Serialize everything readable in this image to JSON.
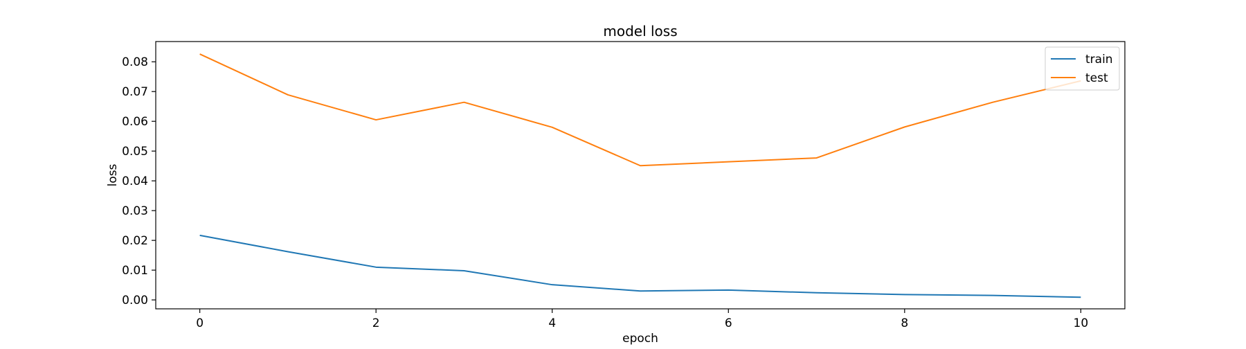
{
  "chart_data": {
    "type": "line",
    "title": "model loss",
    "xlabel": "epoch",
    "ylabel": "loss",
    "x": [
      0,
      1,
      2,
      3,
      4,
      5,
      6,
      7,
      8,
      9,
      10
    ],
    "series": [
      {
        "name": "train",
        "color": "#1f77b4",
        "values": [
          0.0217,
          0.0162,
          0.011,
          0.0098,
          0.0051,
          0.003,
          0.0033,
          0.0024,
          0.0018,
          0.0015,
          0.0009
        ]
      },
      {
        "name": "test",
        "color": "#ff7f0e",
        "values": [
          0.0826,
          0.0689,
          0.0605,
          0.0664,
          0.058,
          0.0451,
          0.0464,
          0.0477,
          0.0581,
          0.0664,
          0.0736
        ]
      }
    ],
    "xlim": [
      -0.5,
      10.5
    ],
    "ylim": [
      -0.003,
      0.0868
    ],
    "xticks": [
      0,
      2,
      4,
      6,
      8,
      10
    ],
    "xtick_labels": [
      "0",
      "2",
      "4",
      "6",
      "8",
      "10"
    ],
    "yticks": [
      0.0,
      0.01,
      0.02,
      0.03,
      0.04,
      0.05,
      0.06,
      0.07,
      0.08
    ],
    "ytick_labels": [
      "0.00",
      "0.01",
      "0.02",
      "0.03",
      "0.04",
      "0.05",
      "0.06",
      "0.07",
      "0.08"
    ],
    "grid": false,
    "legend_position": "upper right"
  }
}
